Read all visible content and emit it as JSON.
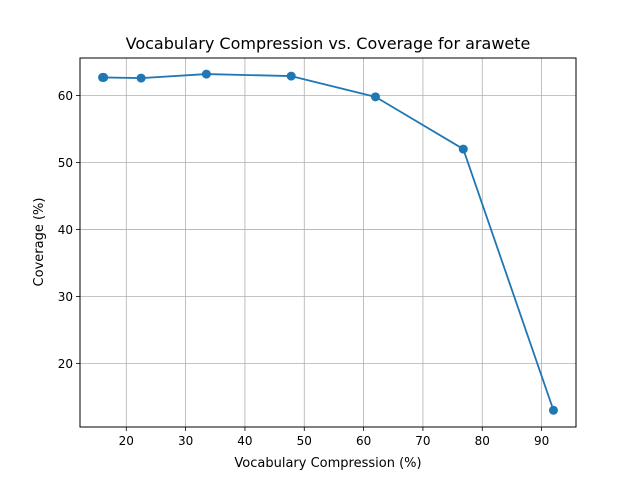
{
  "chart_data": {
    "type": "line",
    "title": "Vocabulary Compression vs. Coverage for arawete",
    "xlabel": "Vocabulary Compression (%)",
    "ylabel": "Coverage (%)",
    "xlim": [
      12.2,
      95.8
    ],
    "ylim": [
      10.5,
      65.6
    ],
    "xticks": [
      20,
      30,
      40,
      50,
      60,
      70,
      80,
      90
    ],
    "yticks": [
      20,
      30,
      40,
      50,
      60
    ],
    "grid": true,
    "series": [
      {
        "color": "#1f77b4",
        "marker": "circle",
        "points": [
          {
            "x": 16.0,
            "y": 62.7
          },
          {
            "x": 16.2,
            "y": 62.7
          },
          {
            "x": 22.5,
            "y": 62.6
          },
          {
            "x": 33.5,
            "y": 63.2
          },
          {
            "x": 47.8,
            "y": 62.9
          },
          {
            "x": 62.0,
            "y": 59.8
          },
          {
            "x": 76.8,
            "y": 52.0
          },
          {
            "x": 92.0,
            "y": 13.0
          }
        ]
      }
    ]
  }
}
